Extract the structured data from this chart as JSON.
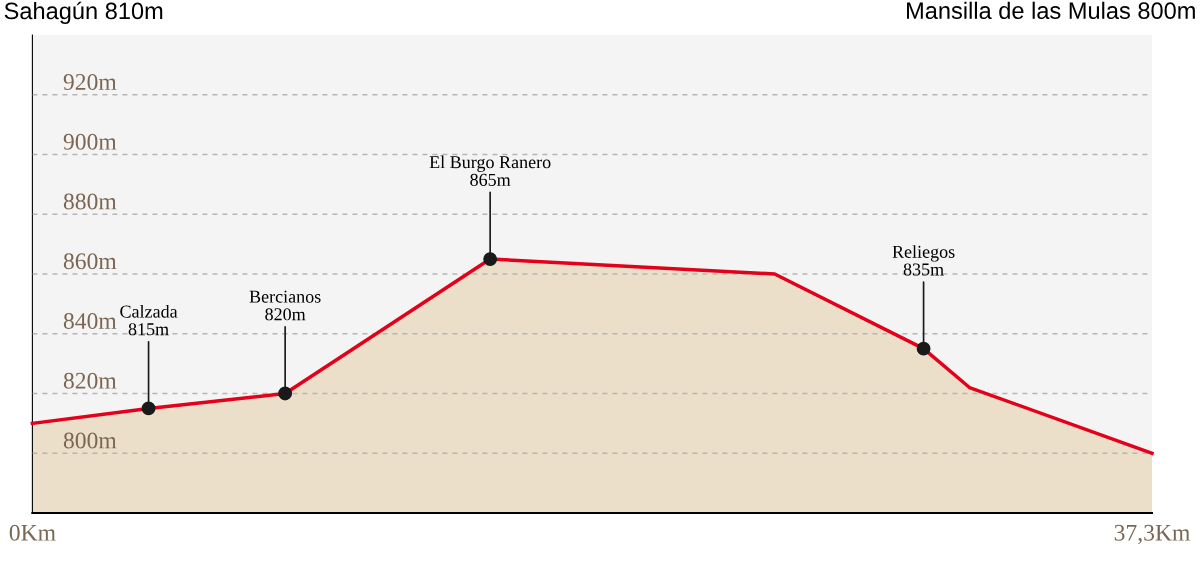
{
  "chart_data": {
    "type": "area",
    "title": "Sahagún 810m",
    "subtitle": "Mansilla de las Mulas 800m",
    "x": [
      0,
      3.87,
      8.42,
      15.25,
      24.73,
      29.69,
      31.22,
      37.3
    ],
    "series": [
      {
        "type": "area",
        "color": "#e2001a",
        "values": [
          810,
          815,
          820,
          865,
          860,
          835,
          822,
          800
        ]
      },
      {
        "type": "scatter",
        "color": "#1a1a1a",
        "x": [
          3.87,
          8.42,
          15.25,
          29.69
        ],
        "values": [
          815,
          820,
          865,
          835
        ],
        "marker": "circle"
      }
    ],
    "xlim": [
      0,
      37.3
    ],
    "xticks": [
      {
        "value": 0,
        "label": "0Km"
      },
      {
        "value": 37.3,
        "label": "37,3Km"
      }
    ],
    "ylim": [
      780,
      940
    ],
    "yticks": [
      {
        "value": 800,
        "label": "800m"
      },
      {
        "value": 820,
        "label": "820m"
      },
      {
        "value": 840,
        "label": "840m"
      },
      {
        "value": 860,
        "label": "860m"
      },
      {
        "value": 880,
        "label": "880m"
      },
      {
        "value": 900,
        "label": "900m"
      },
      {
        "value": 920,
        "label": "920m"
      }
    ],
    "grid": "y",
    "line_style": "solid",
    "annotations": [
      {
        "text": "Calzada\n815m",
        "x": 3.87,
        "y": 815
      },
      {
        "text": "Bercianos\n820m",
        "x": 8.42,
        "y": 820
      },
      {
        "text": "El Burgo Ranero\n865m",
        "x": 15.25,
        "y": 865
      },
      {
        "text": "Reliegos\n835m",
        "x": 29.69,
        "y": 835
      }
    ]
  }
}
